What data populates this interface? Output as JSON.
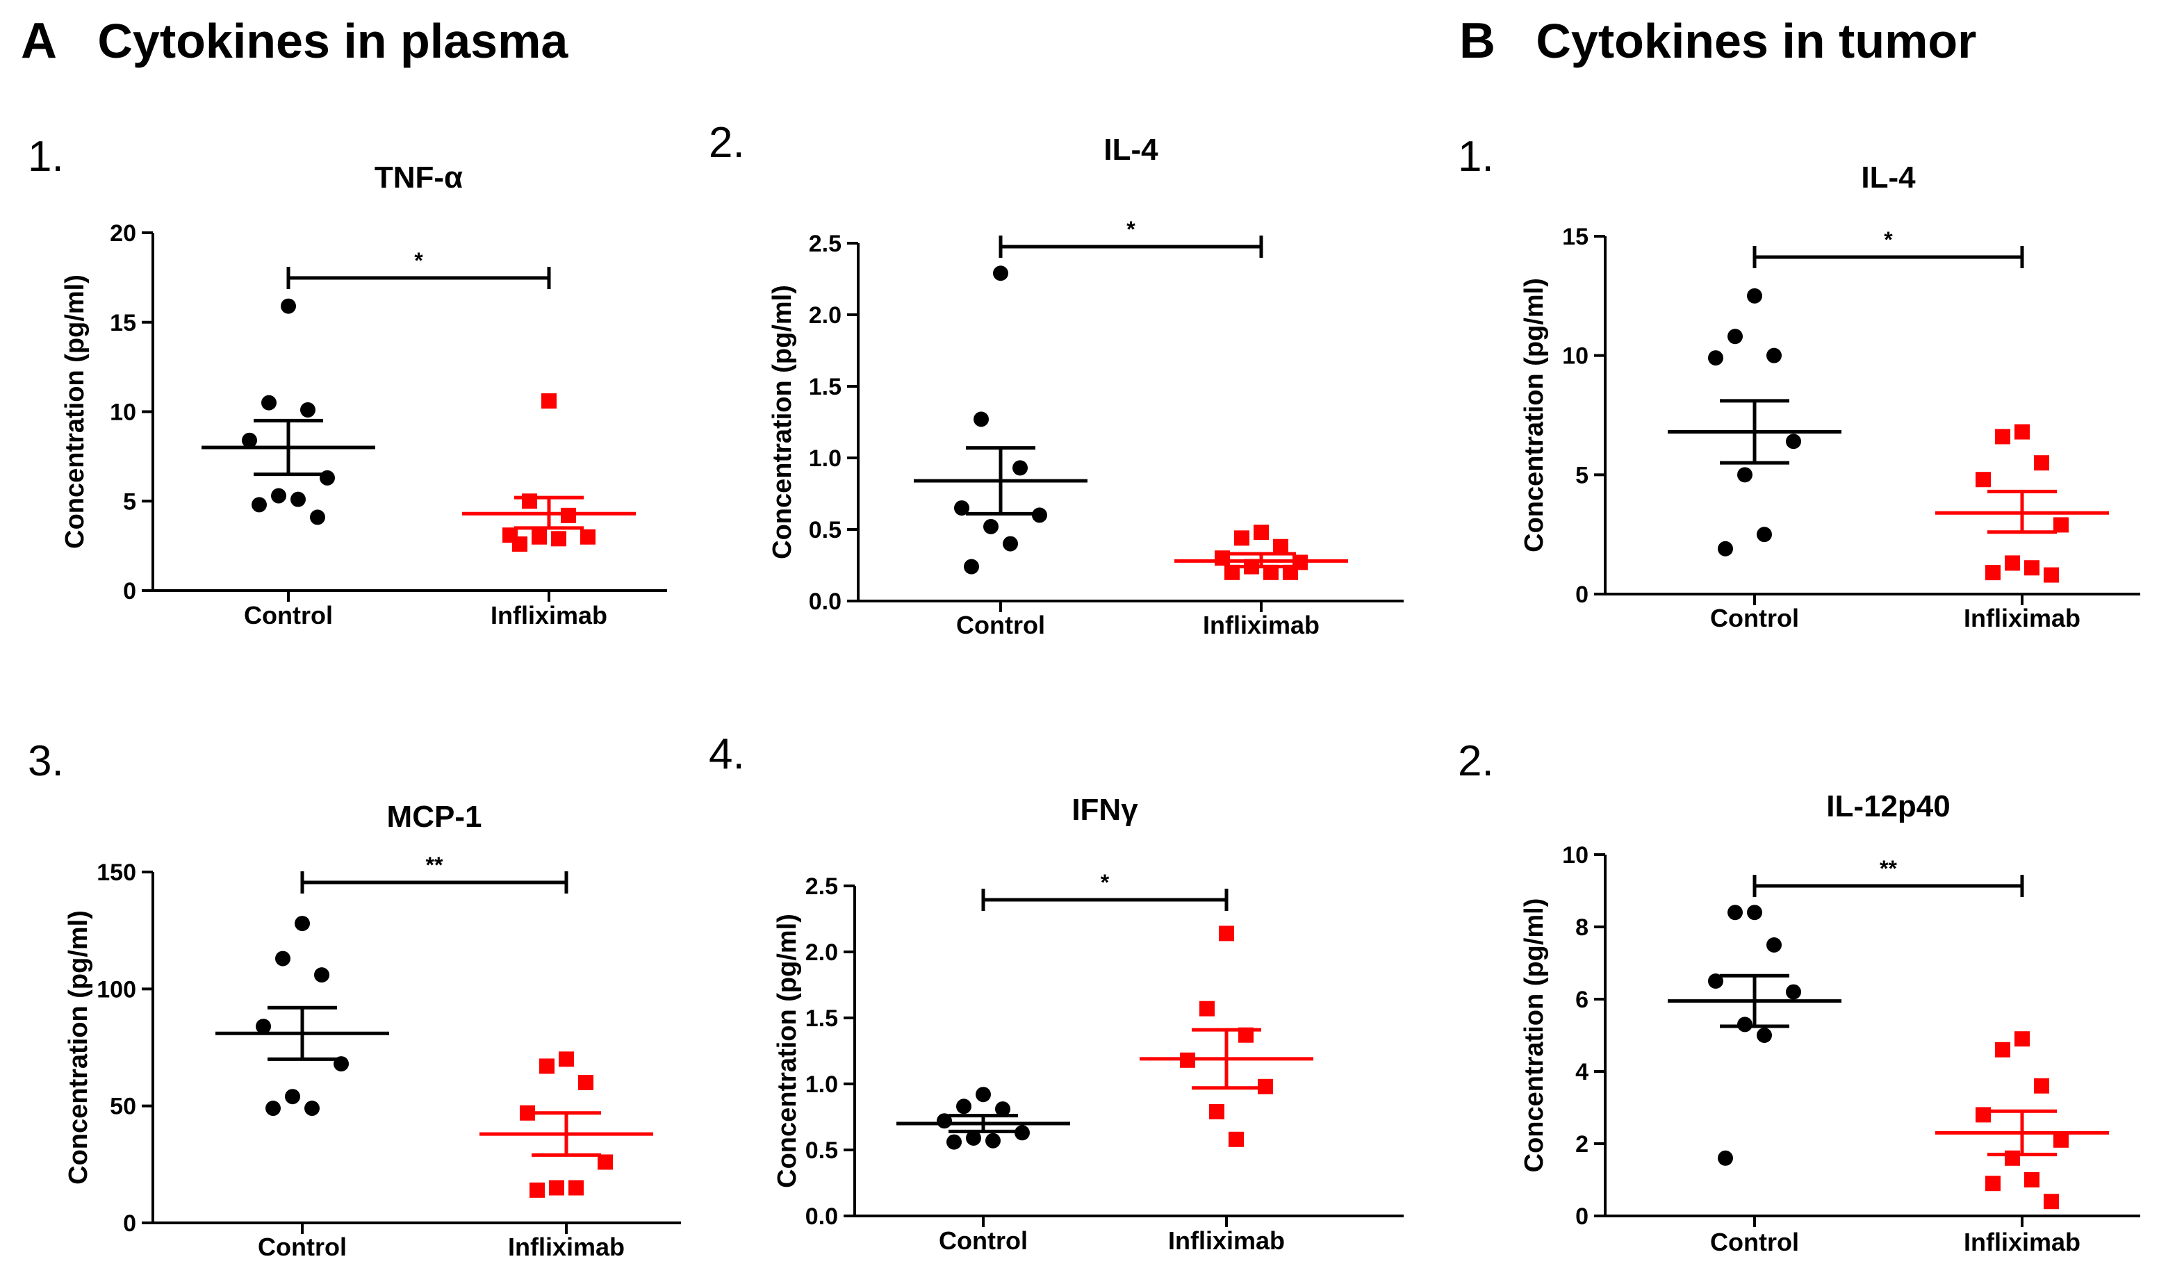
{
  "sections": [
    {
      "letter": "A",
      "title": "Cytokines in plasma"
    },
    {
      "letter": "B",
      "title": "Cytokines in tumor"
    }
  ],
  "colors": {
    "control": "#000000",
    "infliximab": "#ff0000"
  },
  "chart_data": [
    {
      "panel_number": "1.",
      "type": "scatter",
      "title": "TNF-α",
      "xlabel": "",
      "ylabel": "Concentration (pg/ml)",
      "ylim": [
        0,
        20
      ],
      "yticks": [
        0,
        5,
        10,
        15,
        20
      ],
      "ytick_labels": [
        "0",
        "5",
        "10",
        "15",
        "20"
      ],
      "categories": [
        "Control",
        "Infliximab"
      ],
      "significance": "*",
      "series": [
        {
          "name": "Control",
          "marker": "circle",
          "points": [
            15.9,
            10.5,
            10.1,
            8.4,
            6.3,
            5.3,
            5.1,
            4.8,
            4.1
          ],
          "mean": 8.0,
          "sem_low": 6.5,
          "sem_high": 9.5
        },
        {
          "name": "Infliximab",
          "marker": "square",
          "points": [
            10.6,
            5.0,
            4.2,
            3.1,
            3.0,
            3.0,
            2.9,
            2.6
          ],
          "mean": 4.3,
          "sem_low": 3.5,
          "sem_high": 5.2
        }
      ]
    },
    {
      "panel_number": "2.",
      "type": "scatter",
      "title": "IL-4",
      "xlabel": "",
      "ylabel": "Concentration (pg/ml)",
      "ylim": [
        0,
        2.5
      ],
      "yticks": [
        0,
        0.5,
        1.0,
        1.5,
        2.0,
        2.5
      ],
      "ytick_labels": [
        "0.0",
        "0.5",
        "1.0",
        "1.5",
        "2.0",
        "2.5"
      ],
      "categories": [
        "Control",
        "Infliximab"
      ],
      "significance": "*",
      "series": [
        {
          "name": "Control",
          "marker": "circle",
          "points": [
            2.29,
            1.27,
            0.93,
            0.65,
            0.6,
            0.52,
            0.4,
            0.24
          ],
          "mean": 0.84,
          "sem_low": 0.61,
          "sem_high": 1.07
        },
        {
          "name": "Infliximab",
          "marker": "square",
          "points": [
            0.48,
            0.44,
            0.38,
            0.3,
            0.27,
            0.24,
            0.2,
            0.2,
            0.2
          ],
          "mean": 0.28,
          "sem_low": 0.24,
          "sem_high": 0.33
        }
      ]
    },
    {
      "panel_number": "1.",
      "type": "scatter",
      "title": "IL-4",
      "xlabel": "",
      "ylabel": "Concentration (pg/ml)",
      "ylim": [
        0,
        15
      ],
      "yticks": [
        0,
        5,
        10,
        15
      ],
      "ytick_labels": [
        "0",
        "5",
        "10",
        "15"
      ],
      "categories": [
        "Control",
        "Infliximab"
      ],
      "significance": "*",
      "series": [
        {
          "name": "Control",
          "marker": "circle",
          "points": [
            12.5,
            10.8,
            10.0,
            9.9,
            6.4,
            5.0,
            2.5,
            1.9
          ],
          "mean": 6.8,
          "sem_low": 5.5,
          "sem_high": 8.1
        },
        {
          "name": "Infliximab",
          "marker": "square",
          "points": [
            6.8,
            6.6,
            5.5,
            4.8,
            2.9,
            1.3,
            1.1,
            0.9,
            0.8
          ],
          "mean": 3.4,
          "sem_low": 2.6,
          "sem_high": 4.3
        }
      ]
    },
    {
      "panel_number": "3.",
      "type": "scatter",
      "title": "MCP-1",
      "xlabel": "",
      "ylabel": "Concentration (pg/ml)",
      "ylim": [
        0,
        150
      ],
      "yticks": [
        0,
        50,
        100,
        150
      ],
      "ytick_labels": [
        "0",
        "50",
        "100",
        "150"
      ],
      "categories": [
        "Control",
        "Infliximab"
      ],
      "significance": "**",
      "series": [
        {
          "name": "Control",
          "marker": "circle",
          "points": [
            128,
            113,
            106,
            84,
            68,
            54,
            49,
            49
          ],
          "mean": 81,
          "sem_low": 70,
          "sem_high": 92
        },
        {
          "name": "Infliximab",
          "marker": "square",
          "points": [
            70,
            67,
            60,
            47,
            26,
            15,
            15,
            14
          ],
          "mean": 38,
          "sem_low": 29,
          "sem_high": 47
        }
      ]
    },
    {
      "panel_number": "4.",
      "type": "scatter",
      "title": "IFNγ",
      "xlabel": "",
      "ylabel": "Concentration (pg/ml)",
      "ylim": [
        0,
        2.5
      ],
      "yticks": [
        0,
        0.5,
        1.0,
        1.5,
        2.0,
        2.5
      ],
      "ytick_labels": [
        "0.0",
        "0.5",
        "1.0",
        "1.5",
        "2.0",
        "2.5"
      ],
      "categories": [
        "Control",
        "Infliximab"
      ],
      "significance": "*",
      "series": [
        {
          "name": "Control",
          "marker": "circle",
          "points": [
            0.92,
            0.83,
            0.81,
            0.72,
            0.63,
            0.59,
            0.57,
            0.56
          ],
          "mean": 0.7,
          "sem_low": 0.64,
          "sem_high": 0.76
        },
        {
          "name": "Infliximab",
          "marker": "square",
          "points": [
            2.14,
            1.57,
            1.37,
            1.18,
            0.98,
            0.79,
            0.58
          ],
          "mean": 1.19,
          "sem_low": 0.97,
          "sem_high": 1.41
        }
      ]
    },
    {
      "panel_number": "2.",
      "type": "scatter",
      "title": "IL-12p40",
      "xlabel": "",
      "ylabel": "Concentration (pg/ml)",
      "ylim": [
        0,
        10
      ],
      "yticks": [
        0,
        2,
        4,
        6,
        8,
        10
      ],
      "ytick_labels": [
        "0",
        "2",
        "4",
        "6",
        "8",
        "10"
      ],
      "categories": [
        "Control",
        "Infliximab"
      ],
      "significance": "**",
      "series": [
        {
          "name": "Control",
          "marker": "circle",
          "points": [
            8.4,
            8.4,
            7.5,
            6.5,
            6.2,
            5.3,
            5.0,
            1.6
          ],
          "mean": 5.95,
          "sem_low": 5.25,
          "sem_high": 6.65
        },
        {
          "name": "Infliximab",
          "marker": "square",
          "points": [
            4.9,
            4.6,
            3.6,
            2.8,
            2.1,
            1.6,
            1.0,
            0.9,
            0.4
          ],
          "mean": 2.3,
          "sem_low": 1.7,
          "sem_high": 2.9
        }
      ]
    }
  ]
}
